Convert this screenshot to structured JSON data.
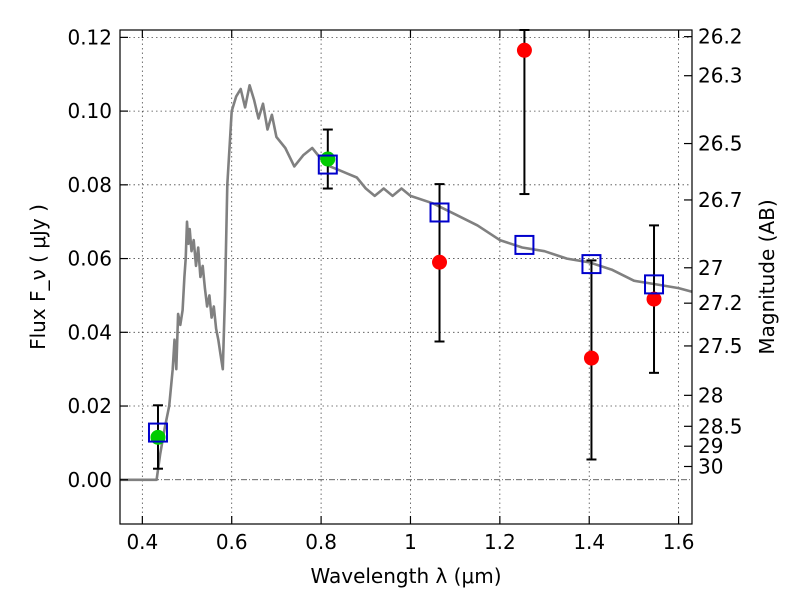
{
  "chart_data": {
    "type": "scatter",
    "xlabel": "Wavelength  λ (μm)",
    "ylabel": "Flux  F_ν  ( μJy )",
    "ylabel_right": "Magnitude (AB)",
    "xlim": [
      0.35,
      1.63
    ],
    "ylim": [
      -0.012,
      0.122
    ],
    "grid": true,
    "x_ticks": [
      {
        "value": 0.4,
        "label": "0.4"
      },
      {
        "value": 0.6,
        "label": "0.6"
      },
      {
        "value": 0.8,
        "label": "0.8"
      },
      {
        "value": 1.0,
        "label": "1"
      },
      {
        "value": 1.2,
        "label": "1.2"
      },
      {
        "value": 1.4,
        "label": "1.4"
      },
      {
        "value": 1.6,
        "label": "1.6"
      }
    ],
    "y_ticks": [
      {
        "value": 0.0,
        "label": "0.00"
      },
      {
        "value": 0.02,
        "label": "0.02"
      },
      {
        "value": 0.04,
        "label": "0.04"
      },
      {
        "value": 0.06,
        "label": "0.06"
      },
      {
        "value": 0.08,
        "label": "0.08"
      },
      {
        "value": 0.1,
        "label": "0.10"
      },
      {
        "value": 0.12,
        "label": "0.12"
      }
    ],
    "right_ticks": [
      {
        "flux": 0.1202,
        "label": "26.2"
      },
      {
        "flux": 0.1096,
        "label": "26.3"
      },
      {
        "flux": 0.0912,
        "label": "26.5"
      },
      {
        "flux": 0.0759,
        "label": "26.7"
      },
      {
        "flux": 0.0575,
        "label": "27"
      },
      {
        "flux": 0.0479,
        "label": "27.2"
      },
      {
        "flux": 0.0363,
        "label": "27.5"
      },
      {
        "flux": 0.0229,
        "label": "28"
      },
      {
        "flux": 0.0145,
        "label": "28.5"
      },
      {
        "flux": 0.0091,
        "label": "29"
      },
      {
        "flux": 0.0036,
        "label": "30"
      }
    ],
    "series": [
      {
        "kind": "line",
        "color": "#808080",
        "x": [
          0.35,
          0.425,
          0.432,
          0.44,
          0.45,
          0.46,
          0.468,
          0.472,
          0.476,
          0.48,
          0.485,
          0.49,
          0.494,
          0.497,
          0.5,
          0.503,
          0.506,
          0.51,
          0.515,
          0.52,
          0.525,
          0.53,
          0.535,
          0.54,
          0.545,
          0.55,
          0.555,
          0.56,
          0.565,
          0.57,
          0.575,
          0.58,
          0.585,
          0.59,
          0.6,
          0.61,
          0.62,
          0.63,
          0.64,
          0.65,
          0.66,
          0.67,
          0.68,
          0.69,
          0.7,
          0.72,
          0.74,
          0.76,
          0.78,
          0.8,
          0.82,
          0.84,
          0.86,
          0.88,
          0.9,
          0.92,
          0.94,
          0.96,
          0.98,
          1.0,
          1.05,
          1.1,
          1.15,
          1.2,
          1.25,
          1.3,
          1.35,
          1.4,
          1.45,
          1.5,
          1.55,
          1.6,
          1.63
        ],
        "y": [
          0.0,
          0.0,
          0.0,
          0.007,
          0.014,
          0.02,
          0.03,
          0.038,
          0.03,
          0.045,
          0.042,
          0.046,
          0.055,
          0.06,
          0.07,
          0.064,
          0.068,
          0.062,
          0.065,
          0.058,
          0.063,
          0.055,
          0.058,
          0.052,
          0.047,
          0.05,
          0.044,
          0.047,
          0.041,
          0.038,
          0.034,
          0.03,
          0.05,
          0.08,
          0.1,
          0.104,
          0.106,
          0.101,
          0.107,
          0.103,
          0.098,
          0.102,
          0.095,
          0.099,
          0.093,
          0.09,
          0.085,
          0.088,
          0.09,
          0.087,
          0.085,
          0.084,
          0.083,
          0.082,
          0.079,
          0.077,
          0.079,
          0.077,
          0.079,
          0.077,
          0.075,
          0.072,
          0.069,
          0.065,
          0.063,
          0.062,
          0.06,
          0.059,
          0.057,
          0.054,
          0.053,
          0.052,
          0.051
        ]
      },
      {
        "kind": "model-points",
        "marker": "open-square",
        "color": "#0000cc",
        "x": [
          0.435,
          0.815,
          1.065,
          1.255,
          1.405,
          1.545
        ],
        "y": [
          0.0128,
          0.0855,
          0.0725,
          0.0637,
          0.0585,
          0.053
        ]
      },
      {
        "kind": "observed",
        "marker": "circle",
        "color": "#00cc00",
        "x": [
          0.435,
          0.815
        ],
        "y": [
          0.0115,
          0.087
        ],
        "yerr_low": [
          0.003,
          0.079
        ],
        "yerr_high": [
          0.0202,
          0.095
        ]
      },
      {
        "kind": "observed",
        "marker": "circle",
        "color": "#ff0000",
        "x": [
          1.065,
          1.255,
          1.405,
          1.545
        ],
        "y": [
          0.059,
          0.1165,
          0.033,
          0.049
        ],
        "yerr_low": [
          0.0375,
          0.0775,
          0.0055,
          0.029
        ],
        "yerr_high": [
          0.0802,
          0.122,
          0.0595,
          0.069
        ]
      }
    ]
  }
}
